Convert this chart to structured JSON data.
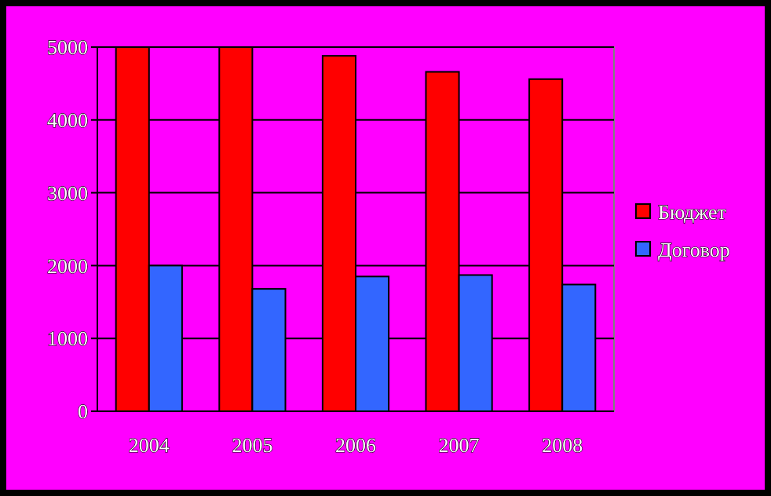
{
  "chart_data": {
    "type": "bar",
    "categories": [
      "2004",
      "2005",
      "2006",
      "2007",
      "2008"
    ],
    "series": [
      {
        "name": "Бюджет",
        "color": "#ff0000",
        "values": [
          5000,
          5000,
          4880,
          4660,
          4560
        ]
      },
      {
        "name": "Договор",
        "color": "#3366ff",
        "values": [
          2000,
          1680,
          1850,
          1870,
          1740
        ]
      }
    ],
    "ylim": [
      0,
      5000
    ],
    "yticks": [
      0,
      1000,
      2000,
      3000,
      4000,
      5000
    ],
    "grid": "y",
    "legend": "right"
  }
}
